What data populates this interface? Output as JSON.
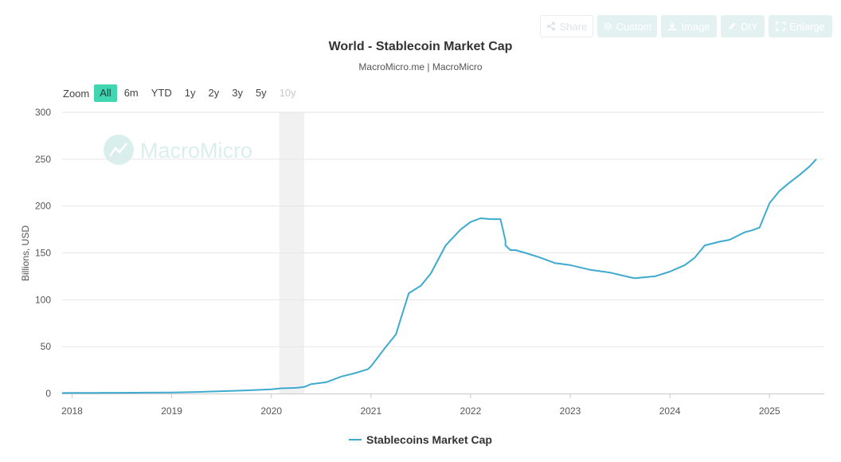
{
  "toolbar": {
    "share": "Share",
    "custom": "Custom",
    "image": "Image",
    "diy": "DIY",
    "enlarge": "Enlarge"
  },
  "header": {
    "title": "World - Stablecoin Market Cap",
    "subtitle": "MacroMicro.me | MacroMicro"
  },
  "zoom": {
    "label": "Zoom",
    "options": [
      "All",
      "6m",
      "YTD",
      "1y",
      "2y",
      "3y",
      "5y",
      "10y"
    ],
    "active": "All",
    "disabled": [
      "10y"
    ]
  },
  "watermark": "MacroMicro",
  "colors": {
    "series": "#3eaacf",
    "recession_band": "#f1f1f1",
    "zoom_active": "#3fd6b1",
    "watermark": "#d9efec"
  },
  "chart_data": {
    "type": "line",
    "title": "World - Stablecoin Market Cap",
    "subtitle": "MacroMicro.me | MacroMicro",
    "ylabel": "Billions, USD",
    "xlabel": "",
    "ylim": [
      0,
      300
    ],
    "yticks": [
      0,
      50,
      100,
      150,
      200,
      250,
      300
    ],
    "xlim": [
      2017.9,
      2025.55
    ],
    "xticks": [
      "2018",
      "2019",
      "2020",
      "2021",
      "2022",
      "2023",
      "2024",
      "2025"
    ],
    "grid": "horizontal",
    "legend_position": "bottom",
    "shaded_periods": [
      {
        "from": 2020.08,
        "to": 2020.33
      }
    ],
    "series": [
      {
        "name": "Stablecoins Market Cap",
        "x": [
          2017.9,
          2018.0,
          2018.25,
          2018.5,
          2018.75,
          2019.0,
          2019.25,
          2019.5,
          2019.75,
          2020.0,
          2020.1,
          2020.25,
          2020.33,
          2020.4,
          2020.55,
          2020.7,
          2020.85,
          2020.97,
          2021.0,
          2021.08,
          2021.15,
          2021.25,
          2021.3,
          2021.38,
          2021.5,
          2021.6,
          2021.75,
          2021.9,
          2022.0,
          2022.1,
          2022.2,
          2022.3,
          2022.35,
          2022.35,
          2022.4,
          2022.45,
          2022.55,
          2022.7,
          2022.85,
          2023.0,
          2023.2,
          2023.4,
          2023.6,
          2023.65,
          2023.85,
          2024.0,
          2024.15,
          2024.25,
          2024.35,
          2024.5,
          2024.6,
          2024.75,
          2024.82,
          2024.9,
          2025.0,
          2025.1,
          2025.2,
          2025.3,
          2025.4,
          2025.47
        ],
        "values": [
          0.5,
          0.6,
          0.7,
          0.8,
          0.9,
          1.1,
          1.6,
          2.5,
          3.3,
          4.5,
          5.5,
          6.0,
          7.0,
          10,
          12,
          18,
          22,
          26,
          29,
          40,
          50,
          63,
          80,
          107,
          115,
          128,
          158,
          175,
          183,
          187,
          186,
          186,
          163,
          158,
          153,
          153,
          150,
          145,
          139,
          137,
          132,
          129,
          124,
          123,
          125,
          130,
          137,
          145,
          158,
          162,
          164,
          172,
          174,
          177,
          203,
          216,
          225,
          233,
          242,
          250
        ]
      }
    ]
  }
}
